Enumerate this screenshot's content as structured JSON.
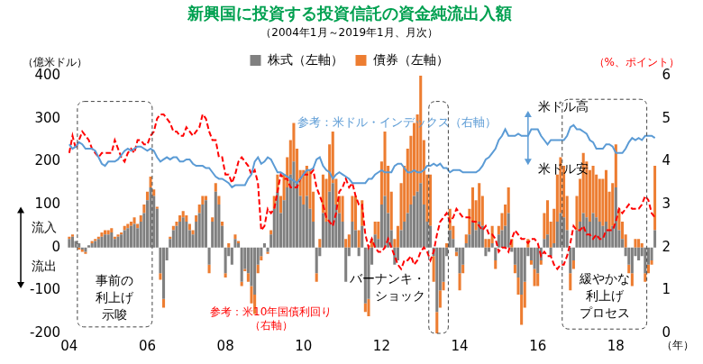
{
  "chart_data": {
    "type": "bar",
    "title": "新興国に投資する投資信託の資金純流出入額",
    "subtitle": "（2004年1月～2019年1月、月次）",
    "y_unit": "（億米ドル）",
    "y2_unit": "（%、ポイント）",
    "x_unit": "（年）",
    "categories": [
      "04",
      null,
      null,
      null,
      null,
      null,
      null,
      null,
      null,
      null,
      null,
      null,
      null,
      null,
      null,
      null,
      null,
      null,
      null,
      null,
      null,
      null,
      null,
      null,
      "06",
      null,
      null,
      null,
      null,
      null,
      null,
      null,
      null,
      null,
      null,
      null,
      null,
      null,
      null,
      null,
      null,
      null,
      null,
      null,
      null,
      null,
      null,
      null,
      "08",
      null,
      null,
      null,
      null,
      null,
      null,
      null,
      null,
      null,
      null,
      null,
      null,
      null,
      null,
      null,
      null,
      null,
      null,
      null,
      null,
      null,
      null,
      null,
      "10",
      null,
      null,
      null,
      null,
      null,
      null,
      null,
      null,
      null,
      null,
      null,
      null,
      null,
      null,
      null,
      null,
      null,
      null,
      null,
      null,
      null,
      null,
      null,
      "12",
      null,
      null,
      null,
      null,
      null,
      null,
      null,
      null,
      null,
      null,
      null,
      null,
      null,
      null,
      null,
      null,
      null,
      null,
      null,
      null,
      null,
      null,
      null,
      "14",
      null,
      null,
      null,
      null,
      null,
      null,
      null,
      null,
      null,
      null,
      null,
      null,
      null,
      null,
      null,
      null,
      null,
      null,
      null,
      null,
      null,
      null,
      null,
      "16",
      null,
      null,
      null,
      null,
      null,
      null,
      null,
      null,
      null,
      null,
      null,
      null,
      null,
      null,
      null,
      null,
      null,
      null,
      null,
      null,
      null,
      null,
      null,
      "18",
      null,
      null,
      null,
      null,
      null,
      null,
      null,
      null,
      null,
      null,
      null,
      null
    ],
    "series": [
      {
        "name": "株式（左軸）",
        "color": "#808080",
        "type": "bar",
        "values": [
          20,
          25,
          15,
          10,
          -5,
          -10,
          5,
          10,
          15,
          20,
          25,
          30,
          30,
          35,
          20,
          25,
          30,
          40,
          45,
          50,
          55,
          45,
          60,
          80,
          110,
          140,
          120,
          90,
          -60,
          -120,
          -30,
          20,
          40,
          50,
          60,
          70,
          60,
          40,
          30,
          60,
          80,
          100,
          110,
          -40,
          60,
          130,
          100,
          50,
          -60,
          -20,
          -40,
          20,
          10,
          -80,
          -50,
          -60,
          -90,
          -110,
          -40,
          -20,
          10,
          -10,
          30,
          90,
          130,
          80,
          110,
          140,
          170,
          200,
          150,
          120,
          100,
          120,
          90,
          60,
          -60,
          -20,
          80,
          60,
          130,
          150,
          100,
          80,
          60,
          -80,
          -20,
          60,
          40,
          -20,
          50,
          -130,
          -120,
          -40,
          30,
          20,
          100,
          120,
          80,
          40,
          -40,
          -30,
          40,
          60,
          80,
          100,
          120,
          130,
          150,
          100,
          60,
          50,
          -20,
          -150,
          -100,
          -80,
          -20,
          40,
          20,
          -10,
          -60,
          -40,
          10,
          30,
          60,
          40,
          60,
          50,
          -20,
          -10,
          10,
          -30,
          30,
          40,
          50,
          80,
          -10,
          -40,
          -70,
          -110,
          -80,
          -20,
          -30,
          -50,
          -60,
          -30,
          20,
          30,
          -20,
          10,
          60,
          80,
          70,
          40,
          -60,
          -30,
          40,
          60,
          80,
          70,
          60,
          80,
          70,
          60,
          50,
          60,
          40,
          50,
          140,
          40,
          20,
          -20,
          -40,
          -60,
          -20,
          -30,
          -20,
          -60,
          -40,
          -30,
          40
        ]
      },
      {
        "name": "債券（左軸）",
        "color": "#ed7d31",
        "type": "bar",
        "values": [
          5,
          5,
          0,
          -5,
          -5,
          -5,
          0,
          5,
          5,
          5,
          10,
          10,
          10,
          10,
          5,
          5,
          5,
          10,
          10,
          10,
          15,
          10,
          15,
          20,
          20,
          25,
          15,
          5,
          -15,
          -20,
          0,
          5,
          10,
          10,
          15,
          15,
          15,
          15,
          10,
          15,
          20,
          20,
          10,
          -20,
          10,
          20,
          20,
          10,
          -10,
          10,
          0,
          10,
          5,
          -10,
          -5,
          -20,
          -40,
          -45,
          -20,
          -10,
          0,
          -5,
          10,
          30,
          40,
          40,
          60,
          70,
          80,
          90,
          80,
          60,
          80,
          70,
          90,
          70,
          -20,
          20,
          90,
          100,
          110,
          120,
          60,
          40,
          60,
          20,
          30,
          60,
          80,
          40,
          60,
          -20,
          -40,
          20,
          30,
          40,
          100,
          150,
          110,
          90,
          20,
          50,
          110,
          130,
          150,
          160,
          170,
          180,
          250,
          150,
          110,
          120,
          -60,
          -50,
          -40,
          -20,
          10,
          50,
          30,
          -10,
          -40,
          -20,
          20,
          60,
          80,
          70,
          90,
          70,
          20,
          20,
          40,
          -20,
          20,
          40,
          50,
          60,
          20,
          -20,
          -40,
          -70,
          -60,
          20,
          -10,
          -40,
          -30,
          -10,
          60,
          80,
          60,
          80,
          110,
          130,
          120,
          80,
          -40,
          -20,
          80,
          100,
          140,
          130,
          120,
          110,
          100,
          100,
          110,
          120,
          90,
          100,
          100,
          50,
          40,
          30,
          -20,
          -30,
          20,
          20,
          10,
          -20,
          -20,
          -10,
          150
        ]
      },
      {
        "name": "参考：米ドル・インデックス（右軸）",
        "color": "#5b9bd5",
        "type": "line",
        "axis": "y2",
        "line_style": "solid",
        "values": [
          4.4,
          4.3,
          4.35,
          4.45,
          4.4,
          4.3,
          4.3,
          4.3,
          4.25,
          4.1,
          3.95,
          3.9,
          4.0,
          4.0,
          4.0,
          4.05,
          4.15,
          4.25,
          4.3,
          4.25,
          4.3,
          4.35,
          4.35,
          4.3,
          4.25,
          4.3,
          4.25,
          4.1,
          4.0,
          4.05,
          4.1,
          4.05,
          4.1,
          4.1,
          4.0,
          4.0,
          4.05,
          4.05,
          3.95,
          3.9,
          3.9,
          3.9,
          3.85,
          3.85,
          3.75,
          3.65,
          3.6,
          3.6,
          3.55,
          3.5,
          3.4,
          3.45,
          3.45,
          3.45,
          3.45,
          3.6,
          3.7,
          4.0,
          4.1,
          3.95,
          4.0,
          4.1,
          4.05,
          3.9,
          3.75,
          3.75,
          3.7,
          3.65,
          3.6,
          3.55,
          3.5,
          3.6,
          3.7,
          3.8,
          3.8,
          3.85,
          4.05,
          4.1,
          3.9,
          3.8,
          3.75,
          3.6,
          3.7,
          3.75,
          3.7,
          3.65,
          3.6,
          3.5,
          3.5,
          3.5,
          3.5,
          3.5,
          3.6,
          3.6,
          3.7,
          3.75,
          3.8,
          3.75,
          3.75,
          3.75,
          3.9,
          3.95,
          3.95,
          3.85,
          3.75,
          3.75,
          3.8,
          3.75,
          3.75,
          3.8,
          3.9,
          3.9,
          3.95,
          3.9,
          3.95,
          3.85,
          3.85,
          3.75,
          3.8,
          3.8,
          3.8,
          3.75,
          3.75,
          3.75,
          3.75,
          3.75,
          3.8,
          3.9,
          4.05,
          4.1,
          4.2,
          4.3,
          4.5,
          4.6,
          4.75,
          4.6,
          4.6,
          4.6,
          4.65,
          4.6,
          4.6,
          4.6,
          4.75,
          4.75,
          4.75,
          4.6,
          4.5,
          4.4,
          4.5,
          4.5,
          4.5,
          4.5,
          4.5,
          4.6,
          4.8,
          4.85,
          4.75,
          4.75,
          4.7,
          4.65,
          4.5,
          4.45,
          4.3,
          4.3,
          4.3,
          4.4,
          4.4,
          4.35,
          4.2,
          4.2,
          4.2,
          4.3,
          4.45,
          4.55,
          4.5,
          4.55,
          4.5,
          4.6,
          4.6,
          4.6,
          4.55
        ]
      },
      {
        "name": "参考：米10年国債利回り（右軸）",
        "color": "#ff0000",
        "type": "line",
        "axis": "y2",
        "line_style": "dashed",
        "values": [
          4.2,
          4.6,
          4.3,
          4.5,
          4.7,
          4.6,
          4.5,
          4.3,
          4.2,
          4.1,
          4.2,
          4.2,
          4.2,
          4.2,
          4.5,
          4.3,
          4.1,
          4.0,
          4.2,
          4.3,
          4.2,
          4.5,
          4.5,
          4.4,
          4.4,
          4.6,
          4.7,
          5.0,
          5.1,
          5.1,
          5.0,
          4.9,
          4.7,
          4.7,
          4.6,
          4.6,
          4.8,
          4.7,
          4.6,
          4.7,
          4.8,
          5.1,
          5.0,
          4.7,
          4.5,
          4.5,
          4.1,
          4.1,
          3.7,
          3.7,
          3.5,
          3.7,
          4.0,
          4.1,
          4.0,
          3.9,
          3.7,
          3.8,
          3.5,
          2.4,
          2.5,
          2.9,
          2.8,
          2.9,
          3.3,
          3.7,
          3.6,
          3.6,
          3.4,
          3.4,
          3.4,
          3.6,
          3.7,
          3.7,
          3.7,
          3.8,
          3.4,
          3.2,
          3.0,
          2.7,
          2.6,
          2.5,
          2.8,
          3.3,
          3.4,
          3.6,
          3.4,
          3.5,
          3.2,
          3.0,
          3.0,
          2.3,
          2.0,
          2.2,
          2.0,
          1.9,
          1.9,
          2.0,
          2.2,
          2.0,
          1.8,
          1.6,
          1.5,
          1.7,
          1.7,
          1.8,
          1.6,
          1.7,
          1.9,
          2.0,
          1.9,
          1.7,
          1.9,
          2.3,
          2.6,
          2.7,
          2.8,
          2.6,
          2.7,
          2.9,
          2.8,
          2.7,
          2.7,
          2.7,
          2.6,
          2.6,
          2.5,
          2.4,
          2.5,
          2.3,
          2.3,
          2.2,
          1.9,
          2.0,
          2.0,
          1.9,
          2.2,
          2.4,
          2.3,
          2.2,
          2.2,
          2.1,
          2.2,
          2.2,
          2.1,
          1.8,
          1.9,
          1.8,
          1.8,
          1.6,
          1.5,
          1.6,
          1.6,
          1.8,
          2.1,
          2.5,
          2.4,
          2.4,
          2.5,
          2.3,
          2.3,
          2.2,
          2.3,
          2.2,
          2.2,
          2.4,
          2.4,
          2.4,
          2.6,
          2.9,
          2.8,
          2.9,
          3.0,
          2.9,
          2.9,
          2.9,
          3.0,
          3.2,
          3.1,
          2.8,
          2.7
        ]
      }
    ],
    "ylim": [
      -200,
      400
    ],
    "yticks": [
      -200,
      -100,
      0,
      100,
      200,
      300,
      400
    ],
    "y2lim": [
      0,
      6
    ],
    "y2ticks": [
      0,
      1,
      2,
      3,
      4,
      5,
      6
    ],
    "stacked": true,
    "grid": false,
    "legend": "top",
    "annotations": [
      "流入",
      "流出",
      "米ドル高",
      "米ドル安",
      [
        "事前の",
        "利上げ",
        "示唆"
      ],
      [
        "バーナンキ・",
        "ショック"
      ],
      [
        "緩やかな",
        "利上げ",
        "プロセス"
      ]
    ]
  }
}
